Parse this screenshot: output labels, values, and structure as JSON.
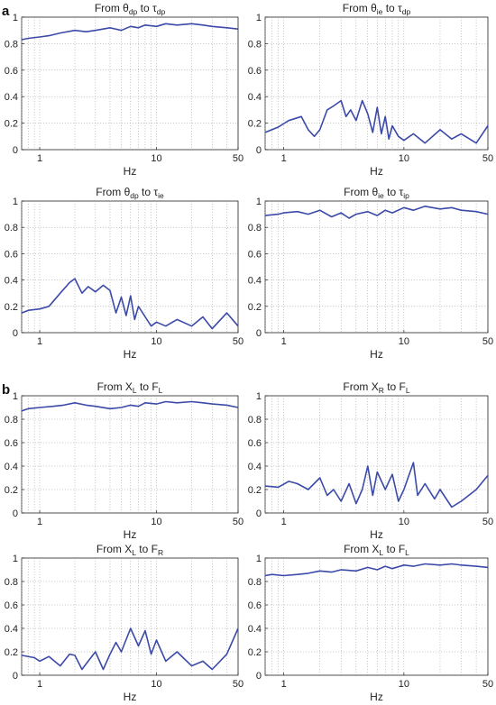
{
  "figure": {
    "panel_labels": [
      "a",
      "b"
    ]
  },
  "chart_data": [
    {
      "type": "line",
      "panel": "a",
      "pos": "top-left",
      "title": {
        "main": "From θ",
        "main_sub": "dp",
        "mid": " to τ",
        "mid_sub": "dp"
      },
      "xlabel": "Hz",
      "xscale": "log",
      "xlim": [
        0.7,
        50
      ],
      "ylim": [
        0,
        1
      ],
      "xticks": [
        1,
        10,
        50
      ],
      "yticks": [
        0,
        0.2,
        0.4,
        0.6,
        0.8,
        1
      ],
      "grid": true,
      "color": "#3b4aa8",
      "x": [
        0.7,
        0.8,
        1.0,
        1.2,
        1.5,
        2.0,
        2.5,
        3.0,
        4.0,
        5.0,
        6.0,
        7.0,
        8.0,
        10.0,
        12.0,
        15.0,
        20.0,
        25.0,
        30.0,
        40.0,
        50.0
      ],
      "y": [
        0.83,
        0.84,
        0.85,
        0.86,
        0.88,
        0.9,
        0.89,
        0.9,
        0.92,
        0.9,
        0.93,
        0.92,
        0.94,
        0.93,
        0.95,
        0.94,
        0.95,
        0.94,
        0.93,
        0.92,
        0.91
      ]
    },
    {
      "type": "line",
      "panel": "a",
      "pos": "top-right",
      "title": {
        "main": "From θ",
        "main_sub": "ie",
        "mid": " to τ",
        "mid_sub": "dp"
      },
      "xlabel": "Hz",
      "xscale": "log",
      "xlim": [
        0.7,
        50
      ],
      "ylim": [
        0,
        1
      ],
      "xticks": [
        1,
        10,
        50
      ],
      "yticks": [
        0,
        0.2,
        0.4,
        0.6,
        0.8,
        1
      ],
      "grid": true,
      "color": "#3b4aa8",
      "x": [
        0.7,
        0.9,
        1.1,
        1.4,
        1.6,
        1.8,
        2.0,
        2.3,
        2.6,
        3.0,
        3.3,
        3.6,
        4.0,
        4.5,
        5.0,
        5.5,
        6.0,
        6.5,
        7.0,
        7.5,
        8.0,
        9.0,
        10.0,
        12.0,
        15.0,
        20.0,
        25.0,
        30.0,
        40.0,
        50.0
      ],
      "y": [
        0.13,
        0.17,
        0.22,
        0.25,
        0.15,
        0.1,
        0.15,
        0.3,
        0.33,
        0.37,
        0.25,
        0.3,
        0.22,
        0.37,
        0.27,
        0.13,
        0.32,
        0.12,
        0.25,
        0.08,
        0.18,
        0.1,
        0.07,
        0.12,
        0.05,
        0.15,
        0.08,
        0.12,
        0.05,
        0.18
      ]
    },
    {
      "type": "line",
      "panel": "a",
      "pos": "bottom-left",
      "title": {
        "main": "From θ",
        "main_sub": "dp",
        "mid": " to τ",
        "mid_sub": "ie"
      },
      "xlabel": "Hz",
      "xscale": "log",
      "xlim": [
        0.7,
        50
      ],
      "ylim": [
        0,
        1
      ],
      "xticks": [
        1,
        10,
        50
      ],
      "yticks": [
        0,
        0.2,
        0.4,
        0.6,
        0.8,
        1
      ],
      "grid": true,
      "color": "#3b4aa8",
      "x": [
        0.7,
        0.8,
        1.0,
        1.2,
        1.5,
        1.8,
        2.0,
        2.3,
        2.6,
        3.0,
        3.5,
        4.0,
        4.5,
        5.0,
        5.5,
        6.0,
        6.5,
        7.0,
        8.0,
        9.0,
        10.0,
        12.0,
        15.0,
        20.0,
        25.0,
        30.0,
        40.0,
        50.0
      ],
      "y": [
        0.15,
        0.17,
        0.18,
        0.2,
        0.3,
        0.38,
        0.41,
        0.3,
        0.35,
        0.31,
        0.36,
        0.32,
        0.15,
        0.27,
        0.13,
        0.28,
        0.1,
        0.2,
        0.12,
        0.05,
        0.08,
        0.05,
        0.1,
        0.05,
        0.12,
        0.03,
        0.15,
        0.05
      ]
    },
    {
      "type": "line",
      "panel": "a",
      "pos": "bottom-right",
      "title": {
        "main": "From θ",
        "main_sub": "ie",
        "mid": " to τ",
        "mid_sub": "ip"
      },
      "xlabel": "Hz",
      "xscale": "log",
      "xlim": [
        0.7,
        50
      ],
      "ylim": [
        0,
        1
      ],
      "xticks": [
        1,
        10,
        50
      ],
      "yticks": [
        0,
        0.2,
        0.4,
        0.6,
        0.8,
        1
      ],
      "grid": true,
      "color": "#3b4aa8",
      "x": [
        0.7,
        0.9,
        1.0,
        1.3,
        1.6,
        2.0,
        2.5,
        3.0,
        3.5,
        4.0,
        5.0,
        6.0,
        7.0,
        8.0,
        10.0,
        12.0,
        15.0,
        20.0,
        25.0,
        30.0,
        40.0,
        50.0
      ],
      "y": [
        0.89,
        0.9,
        0.91,
        0.92,
        0.9,
        0.93,
        0.88,
        0.91,
        0.87,
        0.9,
        0.92,
        0.89,
        0.93,
        0.91,
        0.95,
        0.93,
        0.96,
        0.94,
        0.95,
        0.93,
        0.92,
        0.9
      ]
    },
    {
      "type": "line",
      "panel": "b",
      "pos": "top-left",
      "title": {
        "main": "From X",
        "main_sub": "L",
        "mid": " to F",
        "mid_sub": "L"
      },
      "xlabel": "Hz",
      "xscale": "log",
      "xlim": [
        0.7,
        50
      ],
      "ylim": [
        0,
        1
      ],
      "xticks": [
        1,
        10,
        50
      ],
      "yticks": [
        0,
        0.2,
        0.4,
        0.6,
        0.8,
        1
      ],
      "grid": true,
      "color": "#3b4aa8",
      "x": [
        0.7,
        0.8,
        1.0,
        1.3,
        1.6,
        2.0,
        2.5,
        3.0,
        4.0,
        5.0,
        6.0,
        7.0,
        8.0,
        10.0,
        12.0,
        15.0,
        20.0,
        25.0,
        30.0,
        40.0,
        50.0
      ],
      "y": [
        0.87,
        0.89,
        0.9,
        0.91,
        0.92,
        0.94,
        0.92,
        0.91,
        0.89,
        0.9,
        0.92,
        0.91,
        0.94,
        0.93,
        0.95,
        0.94,
        0.95,
        0.94,
        0.93,
        0.92,
        0.9
      ]
    },
    {
      "type": "line",
      "panel": "b",
      "pos": "top-right",
      "title": {
        "main": "From X",
        "main_sub": "R",
        "mid": " to F",
        "mid_sub": "L"
      },
      "xlabel": "Hz",
      "xscale": "log",
      "xlim": [
        0.7,
        50
      ],
      "ylim": [
        0,
        1
      ],
      "xticks": [
        1,
        10,
        50
      ],
      "yticks": [
        0,
        0.2,
        0.4,
        0.6,
        0.8,
        1
      ],
      "grid": true,
      "color": "#3b4aa8",
      "x": [
        0.7,
        0.9,
        1.1,
        1.3,
        1.6,
        2.0,
        2.3,
        2.6,
        3.0,
        3.5,
        4.0,
        4.5,
        5.0,
        5.5,
        6.0,
        7.0,
        8.0,
        9.0,
        10.0,
        12.0,
        13.0,
        15.0,
        18.0,
        20.0,
        25.0,
        30.0,
        40.0,
        50.0
      ],
      "y": [
        0.23,
        0.22,
        0.27,
        0.25,
        0.2,
        0.3,
        0.15,
        0.2,
        0.1,
        0.25,
        0.08,
        0.2,
        0.4,
        0.15,
        0.35,
        0.2,
        0.33,
        0.1,
        0.2,
        0.43,
        0.15,
        0.25,
        0.12,
        0.2,
        0.05,
        0.1,
        0.2,
        0.32
      ]
    },
    {
      "type": "line",
      "panel": "b",
      "pos": "bottom-left",
      "title": {
        "main": "From X",
        "main_sub": "L",
        "mid": " to F",
        "mid_sub": "R"
      },
      "xlabel": "Hz",
      "xscale": "log",
      "xlim": [
        0.7,
        50
      ],
      "ylim": [
        0,
        1
      ],
      "xticks": [
        1,
        10,
        50
      ],
      "yticks": [
        0,
        0.2,
        0.4,
        0.6,
        0.8,
        1
      ],
      "grid": true,
      "color": "#3b4aa8",
      "x": [
        0.7,
        0.9,
        1.0,
        1.2,
        1.5,
        1.8,
        2.0,
        2.3,
        2.6,
        3.0,
        3.5,
        4.0,
        4.5,
        5.0,
        6.0,
        7.0,
        8.0,
        9.0,
        10.0,
        12.0,
        15.0,
        20.0,
        25.0,
        30.0,
        40.0,
        50.0
      ],
      "y": [
        0.17,
        0.15,
        0.12,
        0.16,
        0.08,
        0.18,
        0.17,
        0.05,
        0.12,
        0.2,
        0.05,
        0.18,
        0.28,
        0.2,
        0.4,
        0.25,
        0.38,
        0.18,
        0.3,
        0.12,
        0.2,
        0.08,
        0.12,
        0.05,
        0.18,
        0.4
      ]
    },
    {
      "type": "line",
      "panel": "b",
      "pos": "bottom-right",
      "title": {
        "main": "From X",
        "main_sub": "L",
        "mid": " to F",
        "mid_sub": "L"
      },
      "xlabel": "Hz",
      "xscale": "log",
      "xlim": [
        0.7,
        50
      ],
      "ylim": [
        0,
        1
      ],
      "xticks": [
        1,
        10,
        50
      ],
      "yticks": [
        0,
        0.2,
        0.4,
        0.6,
        0.8,
        1
      ],
      "grid": true,
      "color": "#3b4aa8",
      "x": [
        0.7,
        0.8,
        1.0,
        1.3,
        1.6,
        2.0,
        2.5,
        3.0,
        4.0,
        5.0,
        6.0,
        7.0,
        8.0,
        10.0,
        12.0,
        15.0,
        20.0,
        25.0,
        30.0,
        40.0,
        50.0
      ],
      "y": [
        0.85,
        0.86,
        0.85,
        0.86,
        0.87,
        0.89,
        0.88,
        0.9,
        0.89,
        0.92,
        0.9,
        0.93,
        0.91,
        0.94,
        0.93,
        0.95,
        0.94,
        0.95,
        0.94,
        0.93,
        0.92
      ]
    }
  ]
}
